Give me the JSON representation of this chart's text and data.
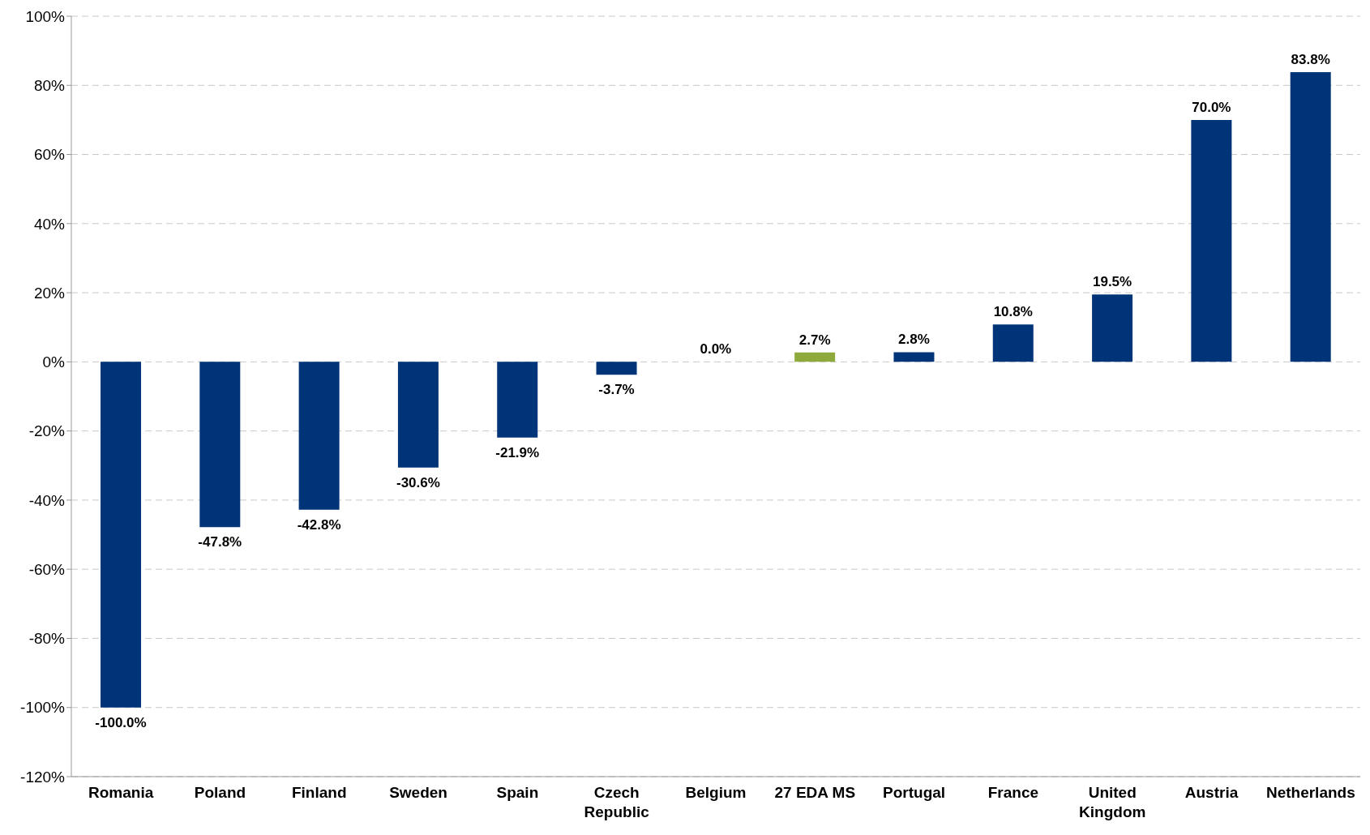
{
  "chart_data": {
    "type": "bar",
    "categories": [
      "Romania",
      "Poland",
      "Finland",
      "Sweden",
      "Spain",
      "Czech Republic",
      "Belgium",
      "27 EDA MS",
      "Portugal",
      "France",
      "United Kingdom",
      "Austria",
      "Netherlands"
    ],
    "values": [
      -100.0,
      -47.8,
      -42.8,
      -30.6,
      -21.9,
      -3.7,
      0.0,
      2.7,
      2.8,
      10.8,
      19.5,
      70.0,
      83.8
    ],
    "colors": [
      "#003478",
      "#003478",
      "#003478",
      "#003478",
      "#003478",
      "#003478",
      "#003478",
      "#8faa3c",
      "#003478",
      "#003478",
      "#003478",
      "#003478",
      "#003478"
    ],
    "value_labels": [
      "-100.0%",
      "-47.8%",
      "-42.8%",
      "-30.6%",
      "-21.9%",
      "-3.7%",
      "0.0%",
      "2.7%",
      "2.8%",
      "10.8%",
      "19.5%",
      "70.0%",
      "83.8%"
    ],
    "ylim": [
      -120,
      100
    ],
    "yticks": [
      {
        "value": -120,
        "label": "-120%"
      },
      {
        "value": -100,
        "label": "-100%"
      },
      {
        "value": -80,
        "label": "-80%"
      },
      {
        "value": -60,
        "label": "-60%"
      },
      {
        "value": -40,
        "label": "-40%"
      },
      {
        "value": -20,
        "label": "-20%"
      },
      {
        "value": 0,
        "label": "0%"
      },
      {
        "value": 20,
        "label": "20%"
      },
      {
        "value": 40,
        "label": "40%"
      },
      {
        "value": 60,
        "label": "60%"
      },
      {
        "value": 80,
        "label": "80%"
      },
      {
        "value": 100,
        "label": "100%"
      }
    ],
    "grid": "y"
  }
}
